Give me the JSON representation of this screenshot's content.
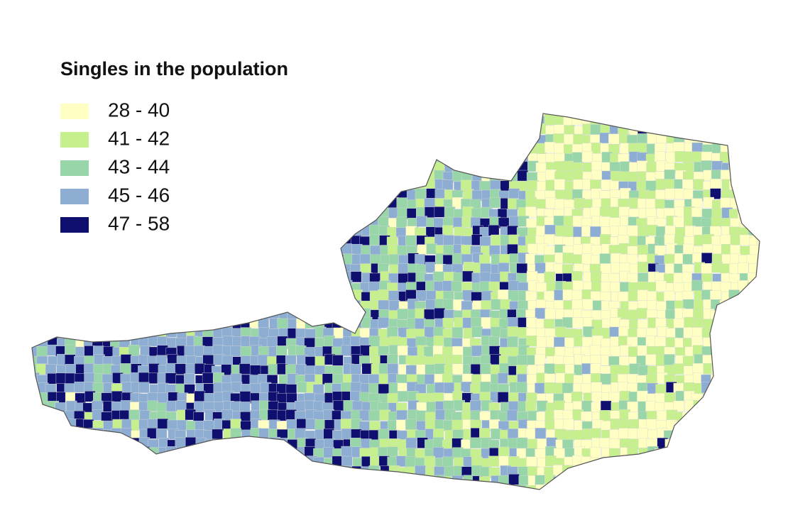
{
  "title": "Singles in the population",
  "legend": [
    {
      "label": "28 - 40",
      "color": "#ffffc4"
    },
    {
      "label": "41 - 42",
      "color": "#c6ef8e"
    },
    {
      "label": "43 - 44",
      "color": "#98d5a9"
    },
    {
      "label": "45 - 46",
      "color": "#8daed2"
    },
    {
      "label": "47 - 58",
      "color": "#0e0f6f"
    }
  ]
}
